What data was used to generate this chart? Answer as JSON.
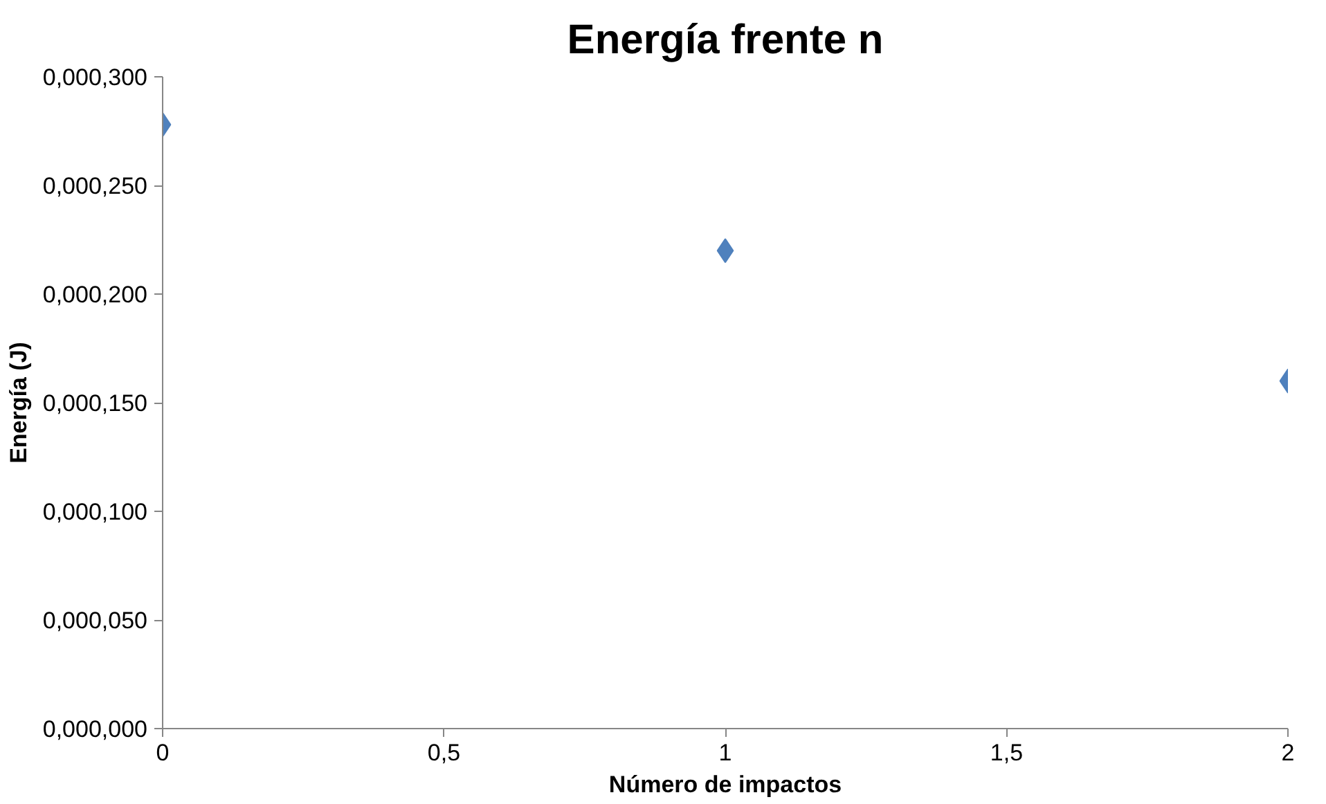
{
  "chart_data": {
    "type": "scatter",
    "title": "Energía frente n",
    "xlabel": "Número de impactos",
    "ylabel": "Energía (J)",
    "x": [
      0,
      1,
      2
    ],
    "series": [
      {
        "color": "#4f81bd",
        "values": [
          278,
          220,
          160
        ]
      }
    ],
    "xlim": [
      0,
      2
    ],
    "xticks": [
      0,
      {
        "value": 0.5,
        "label": "0,5"
      },
      1,
      {
        "value": 1.5,
        "label": "1,5"
      },
      2
    ],
    "ylim": [
      0,
      300
    ],
    "yticks": [
      {
        "value": 0,
        "label": "0,000,000"
      },
      {
        "value": 50,
        "label": "0,000,050"
      },
      {
        "value": 100,
        "label": "0,000,100"
      },
      {
        "value": 150,
        "label": "0,000,150"
      },
      {
        "value": 200,
        "label": "0,000,200"
      },
      {
        "value": 250,
        "label": "0,000,250"
      },
      {
        "value": 300,
        "label": "0,000,300"
      }
    ],
    "grid": false,
    "marker": "diamond"
  }
}
